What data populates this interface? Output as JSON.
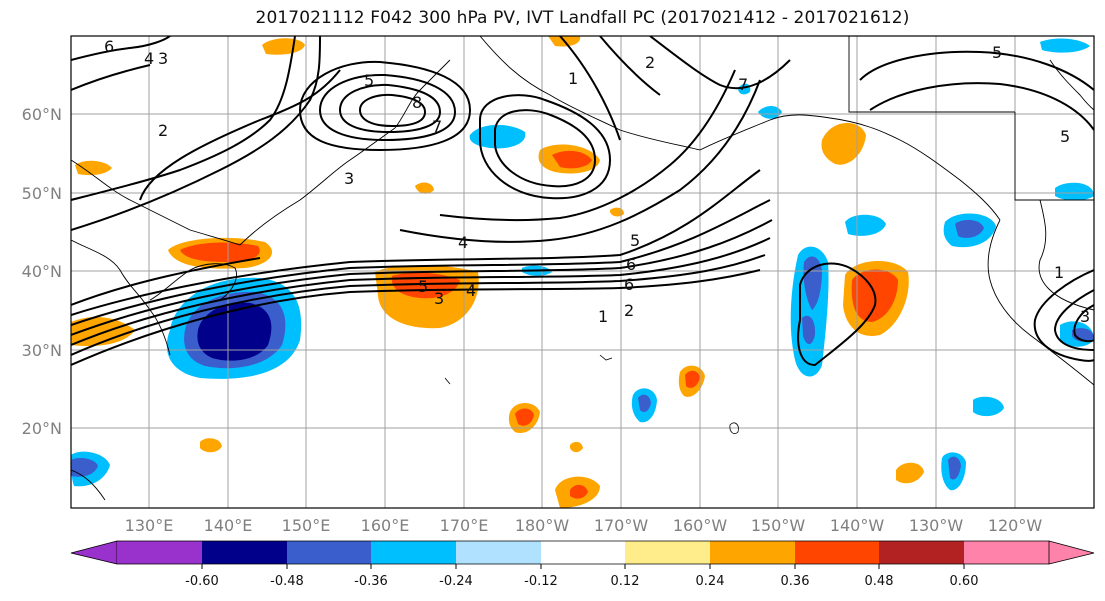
{
  "title": "2017021112 F042 300 hPa PV, IVT Landfall PC (2017021412 - 2017021612)",
  "lat_labels": [
    "20°N",
    "30°N",
    "40°N",
    "50°N",
    "60°N"
  ],
  "lon_labels": [
    "130°E",
    "140°E",
    "150°E",
    "160°E",
    "170°E",
    "180°W",
    "170°W",
    "160°W",
    "150°W",
    "140°W",
    "130°W",
    "120°W"
  ],
  "colorbar": {
    "ticks": [
      "-0.60",
      "-0.48",
      "-0.36",
      "-0.24",
      "-0.12",
      "0.12",
      "0.24",
      "0.36",
      "0.48",
      "0.60"
    ],
    "colors": [
      "#9932cc",
      "#00008b",
      "#3a5fcd",
      "#00bfff",
      "#b0e2ff",
      "#ffffff",
      "#ffec8b",
      "#ffa500",
      "#ff4500",
      "#b22222",
      "#ff82ab"
    ]
  },
  "contour_labels": [
    "6",
    "4",
    "3",
    "2",
    "5",
    "8",
    "7",
    "1",
    "2",
    "3",
    "4",
    "5",
    "6",
    "1",
    "2",
    "3",
    "4",
    "5",
    "6",
    "5",
    "5",
    "1",
    "3",
    "7"
  ]
}
